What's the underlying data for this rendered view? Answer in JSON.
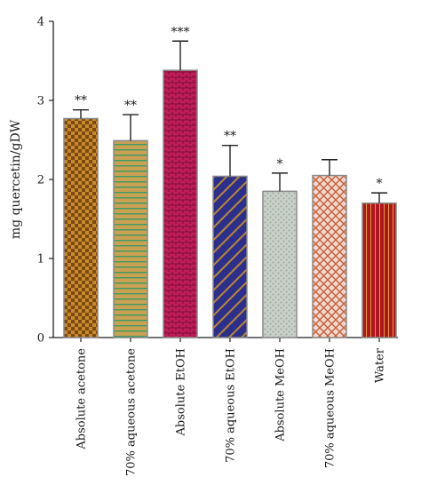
{
  "chart_data": {
    "type": "bar",
    "ylabel": "mg quercetin/gDW",
    "xlabel": "",
    "ylim": [
      0,
      4
    ],
    "yticks": [
      "0",
      "1",
      "2",
      "3",
      "4"
    ],
    "grid": false,
    "categories": [
      "Absolute acetone",
      "70% aqueous acetone",
      "Absolute EtOH",
      "70% aqueous EtOH",
      "Absolute MeOH",
      "70% aqueous MeOH",
      "Water"
    ],
    "values": [
      2.77,
      2.49,
      3.38,
      2.04,
      1.85,
      2.05,
      1.7
    ],
    "error_upper": [
      0.11,
      0.33,
      0.37,
      0.39,
      0.23,
      0.2,
      0.13
    ],
    "significance": [
      "**",
      "**",
      "***",
      "**",
      "*",
      "",
      "*"
    ],
    "bar_styles": [
      {
        "pattern": "checker",
        "fill": "#c98a2b",
        "accent": "#7a4a12"
      },
      {
        "pattern": "hstripes",
        "fill": "#caa052",
        "accent": "#3f9a63"
      },
      {
        "pattern": "brick",
        "fill": "#c21c5a",
        "accent": "#7a0f35"
      },
      {
        "pattern": "diagonal",
        "fill": "#2d2f8c",
        "accent": "#b9892e"
      },
      {
        "pattern": "dots",
        "fill": "#c9cfc9",
        "accent": "#8aa58a"
      },
      {
        "pattern": "crosshatch",
        "fill": "#f6d6d6",
        "accent": "#c0622b"
      },
      {
        "pattern": "vstripes",
        "fill": "#b0141e",
        "accent": "#e0a040"
      }
    ]
  }
}
